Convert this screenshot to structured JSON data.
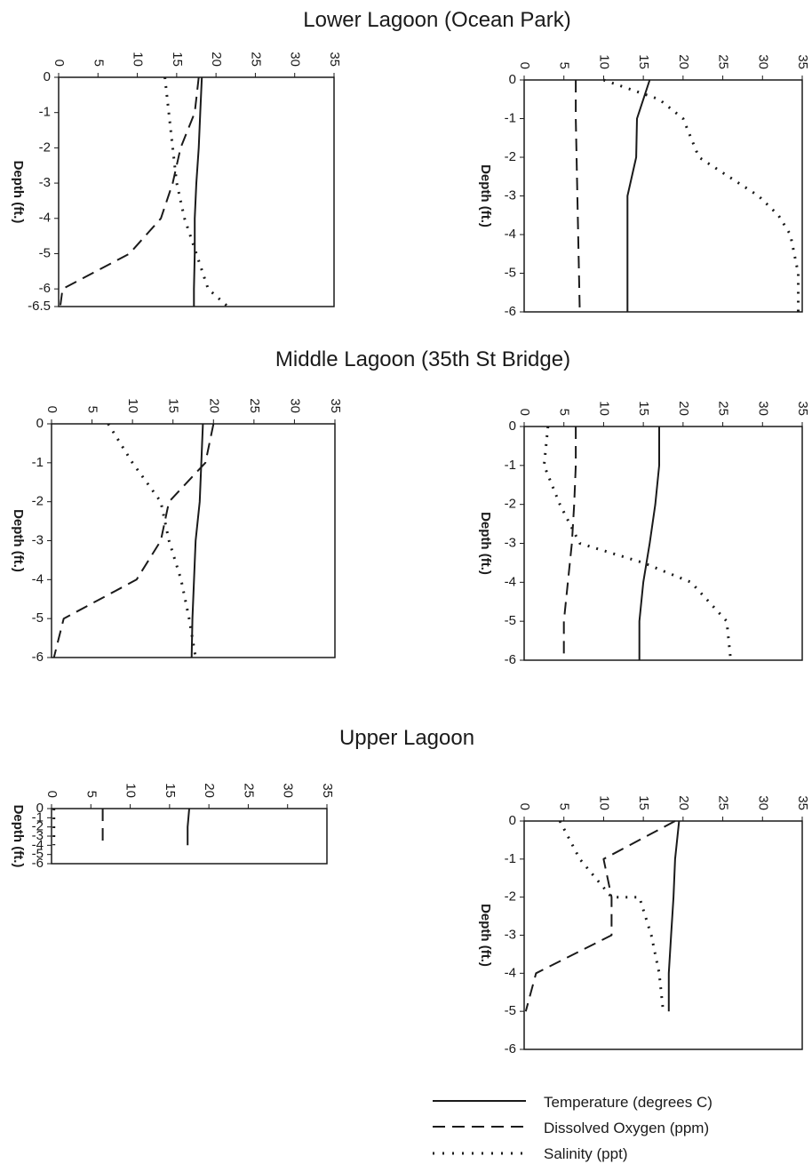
{
  "section_titles": [
    "Lower Lagoon (Ocean Park)",
    "Middle Lagoon (35th St Bridge)",
    "Upper Lagoon"
  ],
  "legend": {
    "items": [
      {
        "label": "Temperature (degrees C)",
        "series": "temperature"
      },
      {
        "label": "Dissolved Oxygen (ppm)",
        "series": "oxygen"
      },
      {
        "label": "Salinity (ppt)",
        "series": "salinity"
      }
    ]
  },
  "colors": {
    "ink": "#1a1a1a",
    "background": "#ffffff"
  },
  "chart_data": [
    {
      "type": "line",
      "section": "Lower Lagoon (Ocean Park)",
      "position": "left",
      "ylabel": "Depth (ft.)",
      "xlim": [
        0,
        35
      ],
      "ylim": [
        -6.5,
        0
      ],
      "x_ticks": [
        "0",
        "5",
        "10",
        "15",
        "20",
        "25",
        "30",
        "35"
      ],
      "y_ticks": [
        "0",
        "-1",
        "-2",
        "-3",
        "-4",
        "-5",
        "-6",
        "-6.5"
      ],
      "grid": false,
      "orientation": "depth profile (x on top axis)",
      "series": [
        {
          "key": "temperature",
          "points": [
            [
              18.2,
              0
            ],
            [
              18.0,
              -1
            ],
            [
              17.8,
              -2
            ],
            [
              17.5,
              -3
            ],
            [
              17.3,
              -4
            ],
            [
              17.3,
              -5
            ],
            [
              17.2,
              -6
            ],
            [
              17.2,
              -6.5
            ]
          ]
        },
        {
          "key": "oxygen",
          "points": [
            [
              17.8,
              0
            ],
            [
              17.3,
              -1
            ],
            [
              15.5,
              -2
            ],
            [
              14.5,
              -3
            ],
            [
              13.0,
              -4
            ],
            [
              9.0,
              -5
            ],
            [
              0.5,
              -6
            ],
            [
              0.2,
              -6.5
            ]
          ]
        },
        {
          "key": "salinity",
          "points": [
            [
              13.5,
              0
            ],
            [
              14.0,
              -1
            ],
            [
              14.5,
              -2
            ],
            [
              15.0,
              -3
            ],
            [
              16.0,
              -4
            ],
            [
              17.5,
              -5
            ],
            [
              19.0,
              -6
            ],
            [
              21.5,
              -6.5
            ]
          ]
        }
      ]
    },
    {
      "type": "line",
      "section": "Lower Lagoon (Ocean Park)",
      "position": "right",
      "ylabel": "Depth (ft.)",
      "xlim": [
        0,
        35
      ],
      "ylim": [
        -6,
        0
      ],
      "x_ticks": [
        "0",
        "5",
        "10",
        "15",
        "20",
        "25",
        "30",
        "35"
      ],
      "y_ticks": [
        "0",
        "-1",
        "-2",
        "-3",
        "-4",
        "-5",
        "-6"
      ],
      "grid": false,
      "orientation": "depth profile (x on top axis)",
      "series": [
        {
          "key": "temperature",
          "points": [
            [
              15.8,
              0
            ],
            [
              14.2,
              -1
            ],
            [
              14.1,
              -2
            ],
            [
              13.0,
              -3
            ],
            [
              13.0,
              -4
            ],
            [
              13.0,
              -5
            ],
            [
              13.0,
              -6
            ]
          ]
        },
        {
          "key": "oxygen",
          "points": [
            [
              6.5,
              0
            ],
            [
              6.5,
              -1
            ],
            [
              6.6,
              -2
            ],
            [
              6.7,
              -3
            ],
            [
              6.8,
              -4
            ],
            [
              6.9,
              -5
            ],
            [
              7.0,
              -6
            ]
          ]
        },
        {
          "key": "salinity",
          "points": [
            [
              10.0,
              0
            ],
            [
              17.0,
              -0.5
            ],
            [
              20.0,
              -1
            ],
            [
              22.0,
              -2
            ],
            [
              29.5,
              -3
            ],
            [
              32.0,
              -3.5
            ],
            [
              33.5,
              -4
            ],
            [
              34.5,
              -5
            ],
            [
              34.5,
              -6
            ]
          ]
        }
      ]
    },
    {
      "type": "line",
      "section": "Middle Lagoon (35th St Bridge)",
      "position": "left",
      "ylabel": "Depth (ft.)",
      "xlim": [
        0,
        35
      ],
      "ylim": [
        -6,
        0
      ],
      "x_ticks": [
        "0",
        "5",
        "10",
        "15",
        "20",
        "25",
        "30",
        "35"
      ],
      "y_ticks": [
        "0",
        "-1",
        "-2",
        "-3",
        "-4",
        "-5",
        "-6"
      ],
      "grid": false,
      "orientation": "depth profile (x on top axis)",
      "series": [
        {
          "key": "temperature",
          "points": [
            [
              18.7,
              0
            ],
            [
              18.5,
              -1
            ],
            [
              18.3,
              -2
            ],
            [
              17.8,
              -3
            ],
            [
              17.6,
              -4
            ],
            [
              17.4,
              -5
            ],
            [
              17.3,
              -6
            ]
          ]
        },
        {
          "key": "oxygen",
          "points": [
            [
              20.0,
              0
            ],
            [
              19.0,
              -1
            ],
            [
              14.5,
              -2
            ],
            [
              13.5,
              -3
            ],
            [
              10.5,
              -4
            ],
            [
              1.5,
              -5
            ],
            [
              0.3,
              -6
            ]
          ]
        },
        {
          "key": "salinity",
          "points": [
            [
              7.0,
              0
            ],
            [
              10.0,
              -1
            ],
            [
              13.5,
              -2
            ],
            [
              14.5,
              -3
            ],
            [
              16.0,
              -4
            ],
            [
              17.0,
              -5
            ],
            [
              17.8,
              -6
            ]
          ]
        }
      ]
    },
    {
      "type": "line",
      "section": "Middle Lagoon (35th St Bridge)",
      "position": "right",
      "ylabel": "Depth (ft.)",
      "xlim": [
        0,
        35
      ],
      "ylim": [
        -6,
        0
      ],
      "x_ticks": [
        "0",
        "5",
        "10",
        "15",
        "20",
        "25",
        "30",
        "35"
      ],
      "y_ticks": [
        "0",
        "-1",
        "-2",
        "-3",
        "-4",
        "-5",
        "-6"
      ],
      "grid": false,
      "orientation": "depth profile (x on top axis)",
      "series": [
        {
          "key": "temperature",
          "points": [
            [
              17.0,
              0
            ],
            [
              17.0,
              -1
            ],
            [
              16.5,
              -2
            ],
            [
              15.8,
              -3
            ],
            [
              15.0,
              -4
            ],
            [
              14.5,
              -5
            ],
            [
              14.5,
              -6
            ]
          ]
        },
        {
          "key": "oxygen",
          "points": [
            [
              6.5,
              0
            ],
            [
              6.5,
              -1
            ],
            [
              6.3,
              -2
            ],
            [
              6.0,
              -3
            ],
            [
              5.5,
              -4
            ],
            [
              5.0,
              -5
            ],
            [
              5.0,
              -6
            ]
          ]
        },
        {
          "key": "salinity",
          "points": [
            [
              3.0,
              0
            ],
            [
              2.5,
              -1
            ],
            [
              4.5,
              -2
            ],
            [
              7.0,
              -3
            ],
            [
              15.0,
              -3.5
            ],
            [
              21.0,
              -4
            ],
            [
              25.5,
              -5
            ],
            [
              26.0,
              -6
            ]
          ]
        }
      ]
    },
    {
      "type": "line",
      "section": "Upper Lagoon",
      "position": "left",
      "ylabel": "Depth (ft.)",
      "xlim": [
        0,
        35
      ],
      "ylim": [
        -6,
        0
      ],
      "x_ticks": [
        "0",
        "5",
        "10",
        "15",
        "20",
        "25",
        "30",
        "35"
      ],
      "y_ticks": [
        "0",
        "-1",
        "-2",
        "-3",
        "-4",
        "-5",
        "-6"
      ],
      "grid": false,
      "orientation": "depth profile (x on top axis)",
      "series": [
        {
          "key": "temperature",
          "points": [
            [
              17.5,
              0
            ],
            [
              17.4,
              -1
            ],
            [
              17.3,
              -2
            ],
            [
              17.3,
              -3
            ],
            [
              17.3,
              -4
            ]
          ]
        },
        {
          "key": "oxygen",
          "points": [
            [
              6.5,
              0
            ],
            [
              6.5,
              -1
            ],
            [
              6.5,
              -2
            ],
            [
              6.5,
              -3
            ],
            [
              6.5,
              -4
            ]
          ]
        },
        {
          "key": "salinity",
          "points": [
            [
              0.3,
              0
            ],
            [
              0.3,
              -1
            ],
            [
              0.3,
              -2
            ],
            [
              0.3,
              -3
            ],
            [
              0.3,
              -4
            ]
          ]
        }
      ]
    },
    {
      "type": "line",
      "section": "Upper Lagoon",
      "position": "right",
      "ylabel": "Depth (ft.)",
      "xlim": [
        0,
        35
      ],
      "ylim": [
        -6,
        0
      ],
      "x_ticks": [
        "0",
        "5",
        "10",
        "15",
        "20",
        "25",
        "30",
        "35"
      ],
      "y_ticks": [
        "0",
        "-1",
        "-2",
        "-3",
        "-4",
        "-5",
        "-6"
      ],
      "grid": false,
      "orientation": "depth profile (x on top axis)",
      "series": [
        {
          "key": "temperature",
          "points": [
            [
              19.5,
              0
            ],
            [
              19.0,
              -1
            ],
            [
              18.8,
              -2
            ],
            [
              18.5,
              -3
            ],
            [
              18.2,
              -4
            ],
            [
              18.2,
              -5
            ]
          ]
        },
        {
          "key": "oxygen",
          "points": [
            [
              19.0,
              0
            ],
            [
              10.0,
              -1
            ],
            [
              11.0,
              -2
            ],
            [
              11.0,
              -3
            ],
            [
              1.5,
              -4
            ],
            [
              0.2,
              -5
            ]
          ]
        },
        {
          "key": "salinity",
          "points": [
            [
              4.5,
              0
            ],
            [
              7.0,
              -1
            ],
            [
              11.0,
              -2
            ],
            [
              14.5,
              -2
            ],
            [
              16.0,
              -3
            ],
            [
              17.0,
              -4
            ],
            [
              17.5,
              -5
            ]
          ]
        }
      ]
    }
  ]
}
